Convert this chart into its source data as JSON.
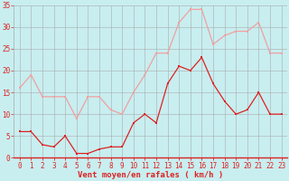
{
  "x": [
    0,
    1,
    2,
    3,
    4,
    5,
    6,
    7,
    8,
    9,
    10,
    11,
    12,
    13,
    14,
    15,
    16,
    17,
    18,
    19,
    20,
    21,
    22,
    23
  ],
  "wind_avg": [
    6,
    6,
    3,
    2.5,
    5,
    1,
    1,
    2,
    2.5,
    2.5,
    8,
    10,
    8,
    17,
    21,
    20,
    23,
    17,
    13,
    10,
    11,
    15,
    10,
    10
  ],
  "wind_gust": [
    16,
    19,
    14,
    14,
    14,
    9,
    14,
    14,
    11,
    10,
    15,
    19,
    24,
    24,
    31,
    34,
    34,
    26,
    28,
    29,
    29,
    31,
    24,
    24
  ],
  "avg_color": "#dd2222",
  "gust_color": "#f0a0a0",
  "bg_color": "#c8eef0",
  "grid_color": "#aaaaaa",
  "xlabel": "Vent moyen/en rafales ( km/h )",
  "xlabel_color": "#dd2222",
  "ylim": [
    0,
    35
  ],
  "yticks": [
    0,
    5,
    10,
    15,
    20,
    25,
    30,
    35
  ],
  "tick_fontsize": 5.5,
  "xlabel_fontsize": 6.5
}
